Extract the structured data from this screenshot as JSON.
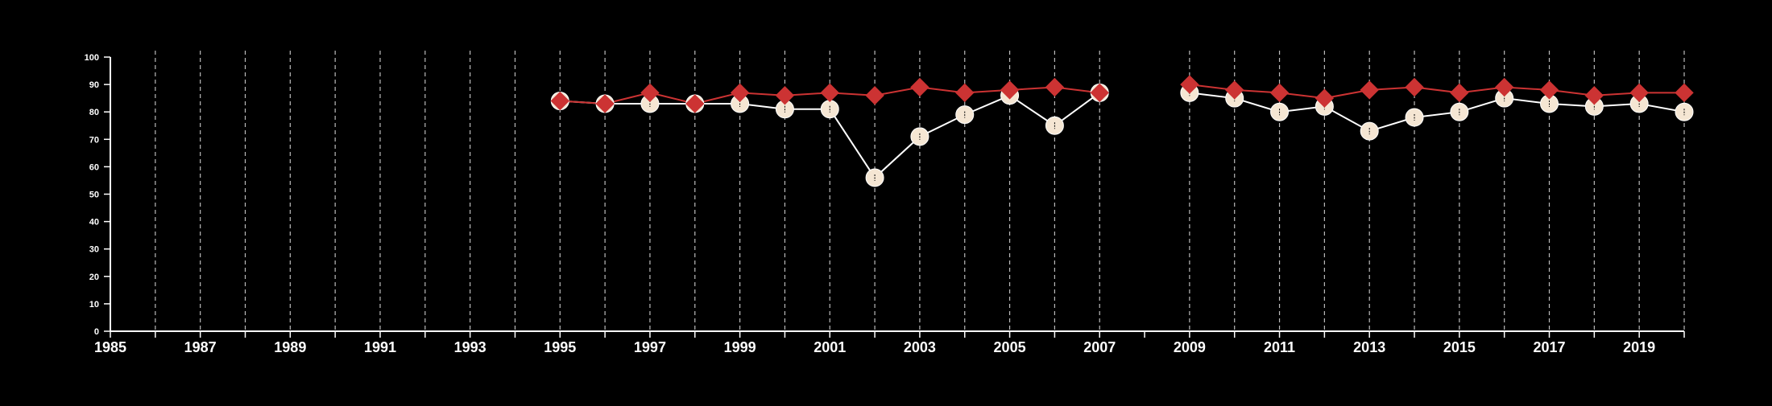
{
  "chart_data": {
    "type": "line",
    "xlim": [
      1985,
      2020
    ],
    "ylim": [
      0,
      100
    ],
    "y_ticks": [
      0,
      10,
      20,
      30,
      40,
      50,
      60,
      70,
      80,
      90,
      100
    ],
    "x_tick_labels": [
      "1985",
      "1987",
      "1989",
      "1991",
      "1993",
      "1995",
      "1997",
      "1999",
      "2001",
      "2003",
      "2005",
      "2007",
      "2009",
      "2011",
      "2013",
      "2015",
      "2017",
      "2019"
    ],
    "vertical_gridlines": "dashed, every year 1986–2020 except 2008",
    "background": "#000000",
    "colors": {
      "axis": "#ffffff",
      "grid": "#bbbbbb"
    },
    "series": [
      {
        "marker": "circle",
        "color": "#f5e6d3",
        "line_color": "#ffffff",
        "segments": [
          {
            "x": [
              1995,
              1996,
              1997,
              1998,
              1999,
              2000,
              2001,
              2002,
              2003,
              2004,
              2005,
              2006,
              2007
            ],
            "y": [
              84,
              83,
              83,
              83,
              83,
              81,
              81,
              56,
              71,
              79,
              86,
              75,
              87
            ]
          },
          {
            "x": [
              2009,
              2010,
              2011,
              2012,
              2013,
              2014,
              2015,
              2016,
              2017,
              2018,
              2019,
              2020
            ],
            "y": [
              87,
              85,
              80,
              82,
              73,
              78,
              80,
              85,
              83,
              82,
              83,
              80
            ]
          }
        ]
      },
      {
        "marker": "diamond",
        "color": "#cc3333",
        "line_color": "#cc3333",
        "segments": [
          {
            "x": [
              1995,
              1996,
              1997,
              1998,
              1999,
              2000,
              2001,
              2002,
              2003,
              2004,
              2005,
              2006,
              2007
            ],
            "y": [
              84,
              83,
              87,
              83,
              87,
              86,
              87,
              86,
              89,
              87,
              88,
              89,
              87
            ]
          },
          {
            "x": [
              2009,
              2010,
              2011,
              2012,
              2013,
              2014,
              2015,
              2016,
              2017,
              2018,
              2019,
              2020
            ],
            "y": [
              90,
              88,
              87,
              85,
              88,
              89,
              87,
              89,
              88,
              86,
              87,
              87
            ]
          }
        ]
      }
    ]
  }
}
